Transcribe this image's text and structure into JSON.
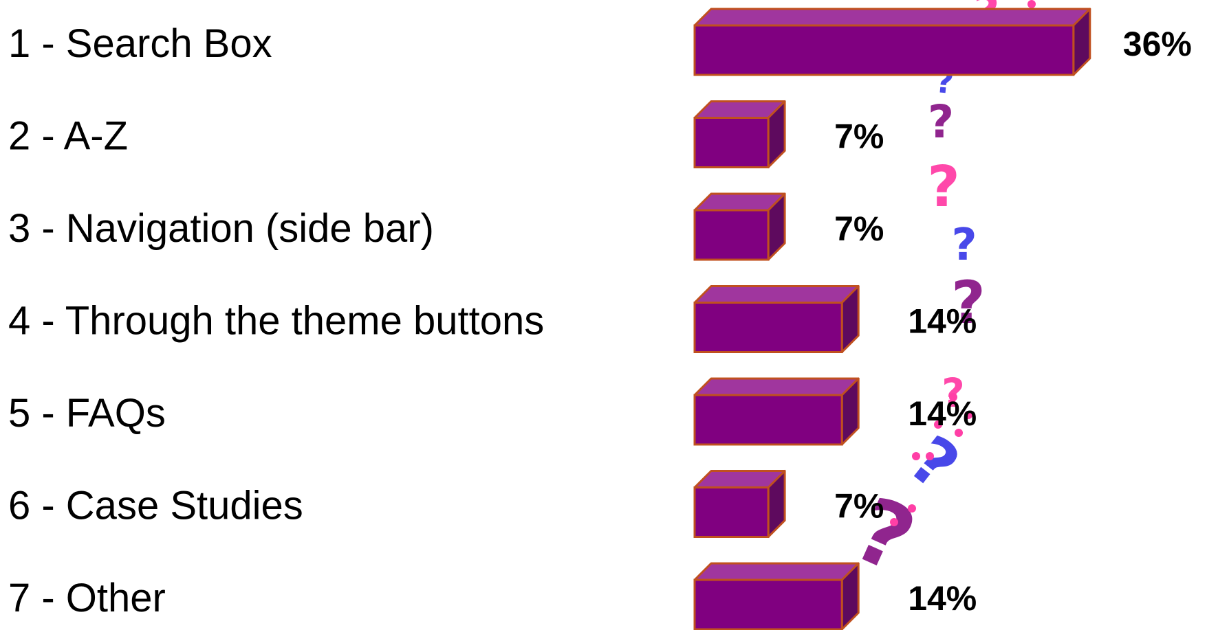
{
  "chart_data": {
    "type": "bar",
    "orientation": "horizontal",
    "style": "3d",
    "categories": [
      "1 - Search Box",
      "2 - A-Z",
      "3 - Navigation (side bar)",
      "4 - Through the theme buttons",
      "5 - FAQs",
      "6 - Case Studies",
      "7 - Other"
    ],
    "values": [
      36,
      7,
      7,
      14,
      14,
      7,
      14
    ],
    "value_labels": [
      "36%",
      "7%",
      "7%",
      "14%",
      "14%",
      "7%",
      "14%"
    ],
    "unit": "%",
    "title": "",
    "xlabel": "",
    "ylabel": "",
    "grid": false,
    "legend": "none",
    "colors": {
      "bar_front": "#800080",
      "bar_top": "#A0369E",
      "bar_side": "#5E0A5E",
      "bar_edge": "#C0501F",
      "label_text": "#000000"
    }
  },
  "decoration": {
    "icon": "question-marks-icon",
    "colors": [
      "#8B1A89",
      "#FF3FA6",
      "#3F3FE8"
    ]
  }
}
